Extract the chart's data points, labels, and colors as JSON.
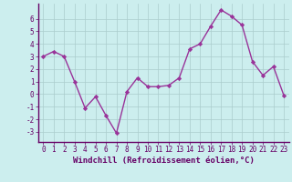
{
  "x": [
    0,
    1,
    2,
    3,
    4,
    5,
    6,
    7,
    8,
    9,
    10,
    11,
    12,
    13,
    14,
    15,
    16,
    17,
    18,
    19,
    20,
    21,
    22,
    23
  ],
  "y": [
    3.0,
    3.4,
    3.0,
    1.0,
    -1.1,
    -0.2,
    -1.7,
    -3.1,
    0.2,
    1.3,
    0.6,
    0.6,
    0.7,
    1.3,
    3.6,
    4.0,
    5.4,
    6.7,
    6.2,
    5.5,
    2.6,
    1.5,
    2.2,
    -0.1
  ],
  "line_color": "#993399",
  "marker": "D",
  "markersize": 2.2,
  "linewidth": 1.0,
  "bg_color": "#cceeee",
  "grid_color": "#aacccc",
  "xlabel": "Windchill (Refroidissement éolien,°C)",
  "xlabel_fontsize": 6.5,
  "tick_color": "#660066",
  "label_color": "#660066",
  "border_color": "#660066",
  "ylim": [
    -3.8,
    7.2
  ],
  "xlim": [
    -0.5,
    23.5
  ],
  "yticks": [
    -3,
    -2,
    -1,
    0,
    1,
    2,
    3,
    4,
    5,
    6
  ],
  "xticks": [
    0,
    1,
    2,
    3,
    4,
    5,
    6,
    7,
    8,
    9,
    10,
    11,
    12,
    13,
    14,
    15,
    16,
    17,
    18,
    19,
    20,
    21,
    22,
    23
  ],
  "tick_fontsize": 5.5,
  "ytick_fontsize": 6.0
}
